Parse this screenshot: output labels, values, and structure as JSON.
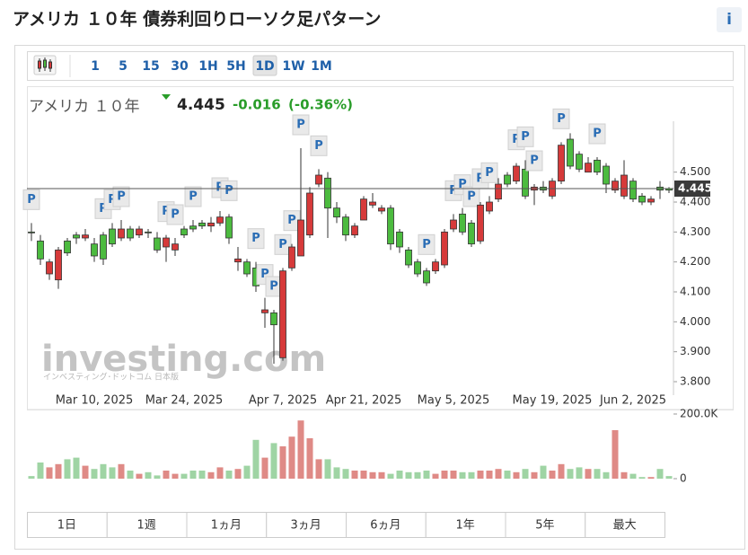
{
  "title": "アメリカ １０年 債券利回りローソク足パターン",
  "info_icon": "i",
  "timeframes": [
    "1",
    "5",
    "15",
    "30",
    "1H",
    "5H",
    "1D",
    "1W",
    "1M"
  ],
  "selected_timeframe": "1D",
  "ranges": [
    "1日",
    "1週",
    "1ヵ月",
    "3ヵ月",
    "6ヵ月",
    "1年",
    "5年",
    "最大"
  ],
  "watermark": {
    "brand": "investing.com",
    "subtitle": "インベスティング･ドットコム 日本版"
  },
  "quote": {
    "name": "アメリカ １０年",
    "change": "-0.016",
    "change_percent": "(-0.36%)"
  },
  "chart_data": {
    "type": "candlestick",
    "categories": [
      null,
      null,
      null,
      null,
      null,
      null,
      null,
      "Mar 10, 2025",
      null,
      null,
      null,
      null,
      null,
      null,
      null,
      null,
      null,
      "Mar 24, 2025",
      null,
      null,
      null,
      null,
      null,
      null,
      null,
      null,
      null,
      null,
      "Apr 7, 2025",
      null,
      null,
      null,
      null,
      null,
      null,
      null,
      null,
      "Apr 21, 2025",
      null,
      null,
      null,
      null,
      null,
      null,
      null,
      null,
      null,
      "May 5, 2025",
      null,
      null,
      null,
      null,
      null,
      null,
      null,
      null,
      null,
      null,
      "May 19, 2025",
      null,
      null,
      null,
      null,
      null,
      null,
      null,
      null,
      "Jun 2, 2025",
      null,
      null,
      null,
      null
    ],
    "open": [
      4.3,
      4.21,
      4.2,
      4.24,
      4.23,
      4.28,
      4.29,
      4.22,
      4.21,
      4.26,
      4.31,
      4.28,
      4.31,
      4.3,
      4.24,
      4.28,
      4.26,
      4.29,
      4.31,
      4.32,
      4.33,
      4.35,
      4.28,
      4.21,
      4.16,
      4.12,
      4.04,
      3.99,
      4.17,
      4.25,
      4.34,
      4.43,
      4.49,
      4.38,
      4.35,
      4.29,
      4.32,
      4.41,
      4.4,
      4.38,
      4.26,
      4.25,
      4.19,
      4.16,
      4.13,
      4.2,
      4.3,
      4.34,
      4.3,
      4.26,
      4.39,
      4.4,
      4.46,
      4.46,
      4.52,
      4.42,
      4.45,
      4.44,
      4.47,
      4.59,
      4.52,
      4.51,
      4.53,
      4.5,
      4.46,
      4.47,
      4.49,
      4.41,
      4.4,
      4.41,
      4.44,
      4.44
    ],
    "high": [
      4.33,
      4.29,
      4.21,
      4.25,
      4.28,
      4.3,
      4.31,
      4.28,
      4.3,
      4.33,
      4.34,
      4.32,
      4.32,
      4.31,
      4.3,
      4.29,
      4.28,
      4.32,
      4.34,
      4.34,
      4.35,
      4.37,
      4.36,
      4.25,
      4.21,
      4.2,
      4.08,
      4.04,
      4.18,
      4.26,
      4.58,
      4.45,
      4.51,
      4.5,
      4.4,
      4.36,
      4.33,
      4.42,
      4.43,
      4.39,
      4.39,
      4.31,
      4.25,
      4.21,
      4.18,
      4.21,
      4.31,
      4.36,
      4.38,
      4.34,
      4.4,
      4.42,
      4.48,
      4.5,
      4.53,
      4.54,
      4.46,
      4.47,
      4.48,
      4.6,
      4.63,
      4.57,
      4.55,
      4.55,
      4.53,
      4.48,
      4.54,
      4.48,
      4.43,
      4.42,
      4.47,
      4.45
    ],
    "low": [
      4.27,
      4.19,
      4.14,
      4.11,
      4.22,
      4.26,
      4.27,
      4.2,
      4.19,
      4.25,
      4.27,
      4.27,
      4.28,
      4.28,
      4.23,
      4.2,
      4.22,
      4.28,
      4.3,
      4.31,
      4.3,
      4.32,
      4.26,
      4.17,
      4.15,
      4.1,
      3.98,
      3.86,
      3.87,
      4.17,
      4.22,
      4.28,
      4.45,
      4.28,
      4.33,
      4.27,
      4.28,
      4.34,
      4.38,
      4.36,
      4.24,
      4.23,
      4.18,
      4.15,
      4.12,
      4.16,
      4.18,
      4.3,
      4.29,
      4.25,
      4.26,
      4.36,
      4.4,
      4.45,
      4.46,
      4.41,
      4.39,
      4.43,
      4.41,
      4.46,
      4.51,
      4.5,
      4.5,
      4.49,
      4.43,
      4.43,
      4.41,
      4.4,
      4.39,
      4.39,
      4.41,
      4.43
    ],
    "close": [
      4.3,
      4.27,
      4.16,
      4.14,
      4.27,
      4.29,
      4.28,
      4.26,
      4.29,
      4.31,
      4.28,
      4.31,
      4.29,
      4.3,
      4.28,
      4.25,
      4.24,
      4.31,
      4.32,
      4.33,
      4.32,
      4.33,
      4.35,
      4.2,
      4.2,
      4.18,
      4.03,
      4.03,
      3.88,
      4.18,
      4.22,
      4.29,
      4.46,
      4.48,
      4.38,
      4.35,
      4.29,
      4.34,
      4.39,
      4.37,
      4.38,
      4.3,
      4.24,
      4.2,
      4.17,
      4.17,
      4.19,
      4.31,
      4.36,
      4.33,
      4.27,
      4.37,
      4.41,
      4.49,
      4.47,
      4.51,
      4.44,
      4.45,
      4.42,
      4.47,
      4.61,
      4.56,
      4.5,
      4.54,
      4.52,
      4.44,
      4.42,
      4.47,
      4.42,
      4.4,
      4.45,
      4.445
    ],
    "volume": [
      8000,
      50000,
      35000,
      45000,
      60000,
      65000,
      40000,
      30000,
      45000,
      35000,
      45000,
      25000,
      15000,
      20000,
      10000,
      25000,
      15000,
      15000,
      25000,
      25000,
      20000,
      35000,
      25000,
      30000,
      40000,
      120000,
      65000,
      110000,
      100000,
      130000,
      180000,
      125000,
      60000,
      60000,
      35000,
      30000,
      25000,
      25000,
      20000,
      20000,
      15000,
      25000,
      20000,
      20000,
      25000,
      15000,
      25000,
      25000,
      20000,
      20000,
      25000,
      25000,
      30000,
      25000,
      20000,
      30000,
      20000,
      40000,
      25000,
      45000,
      30000,
      35000,
      30000,
      30000,
      20000,
      150000,
      20000,
      15000,
      5000,
      5000,
      30000,
      8000
    ],
    "patterns": [
      "P",
      null,
      null,
      null,
      null,
      null,
      null,
      null,
      "P",
      "P",
      "P",
      null,
      null,
      null,
      null,
      "P",
      "P",
      null,
      "P",
      null,
      null,
      "P",
      "P",
      null,
      null,
      "P",
      "P",
      "P",
      "P",
      "P",
      "P",
      null,
      "P",
      null,
      null,
      null,
      null,
      null,
      null,
      null,
      null,
      null,
      null,
      null,
      "P",
      null,
      null,
      "P",
      "P",
      "P",
      "P",
      "P",
      null,
      null,
      "P",
      "P",
      "P",
      null,
      null,
      "P",
      null,
      null,
      null,
      "P",
      null,
      null,
      null,
      null,
      null,
      null,
      null,
      null
    ],
    "last_value": {
      "value": 4.445,
      "label": "4.445"
    },
    "ylim": [
      3.77,
      4.67
    ],
    "yticks": [
      {
        "value": 3.8,
        "label": "3.800"
      },
      {
        "value": 3.9,
        "label": "3.900"
      },
      {
        "value": 4.0,
        "label": "4.000"
      },
      {
        "value": 4.1,
        "label": "4.100"
      },
      {
        "value": 4.2,
        "label": "4.200"
      },
      {
        "value": 4.3,
        "label": "4.300"
      },
      {
        "value": 4.4,
        "label": "4.400"
      },
      {
        "value": 4.5,
        "label": "4.500"
      }
    ],
    "volume_ylim": [
      0,
      200000
    ],
    "volume_yticks": [
      0,
      {
        "value": 200000,
        "label": "200.0K"
      }
    ],
    "up_color": "#4cbb3f",
    "down_color": "#d63a3a",
    "up_volume_color": "#9fd4a4",
    "down_volume_color": "#df8a86"
  }
}
